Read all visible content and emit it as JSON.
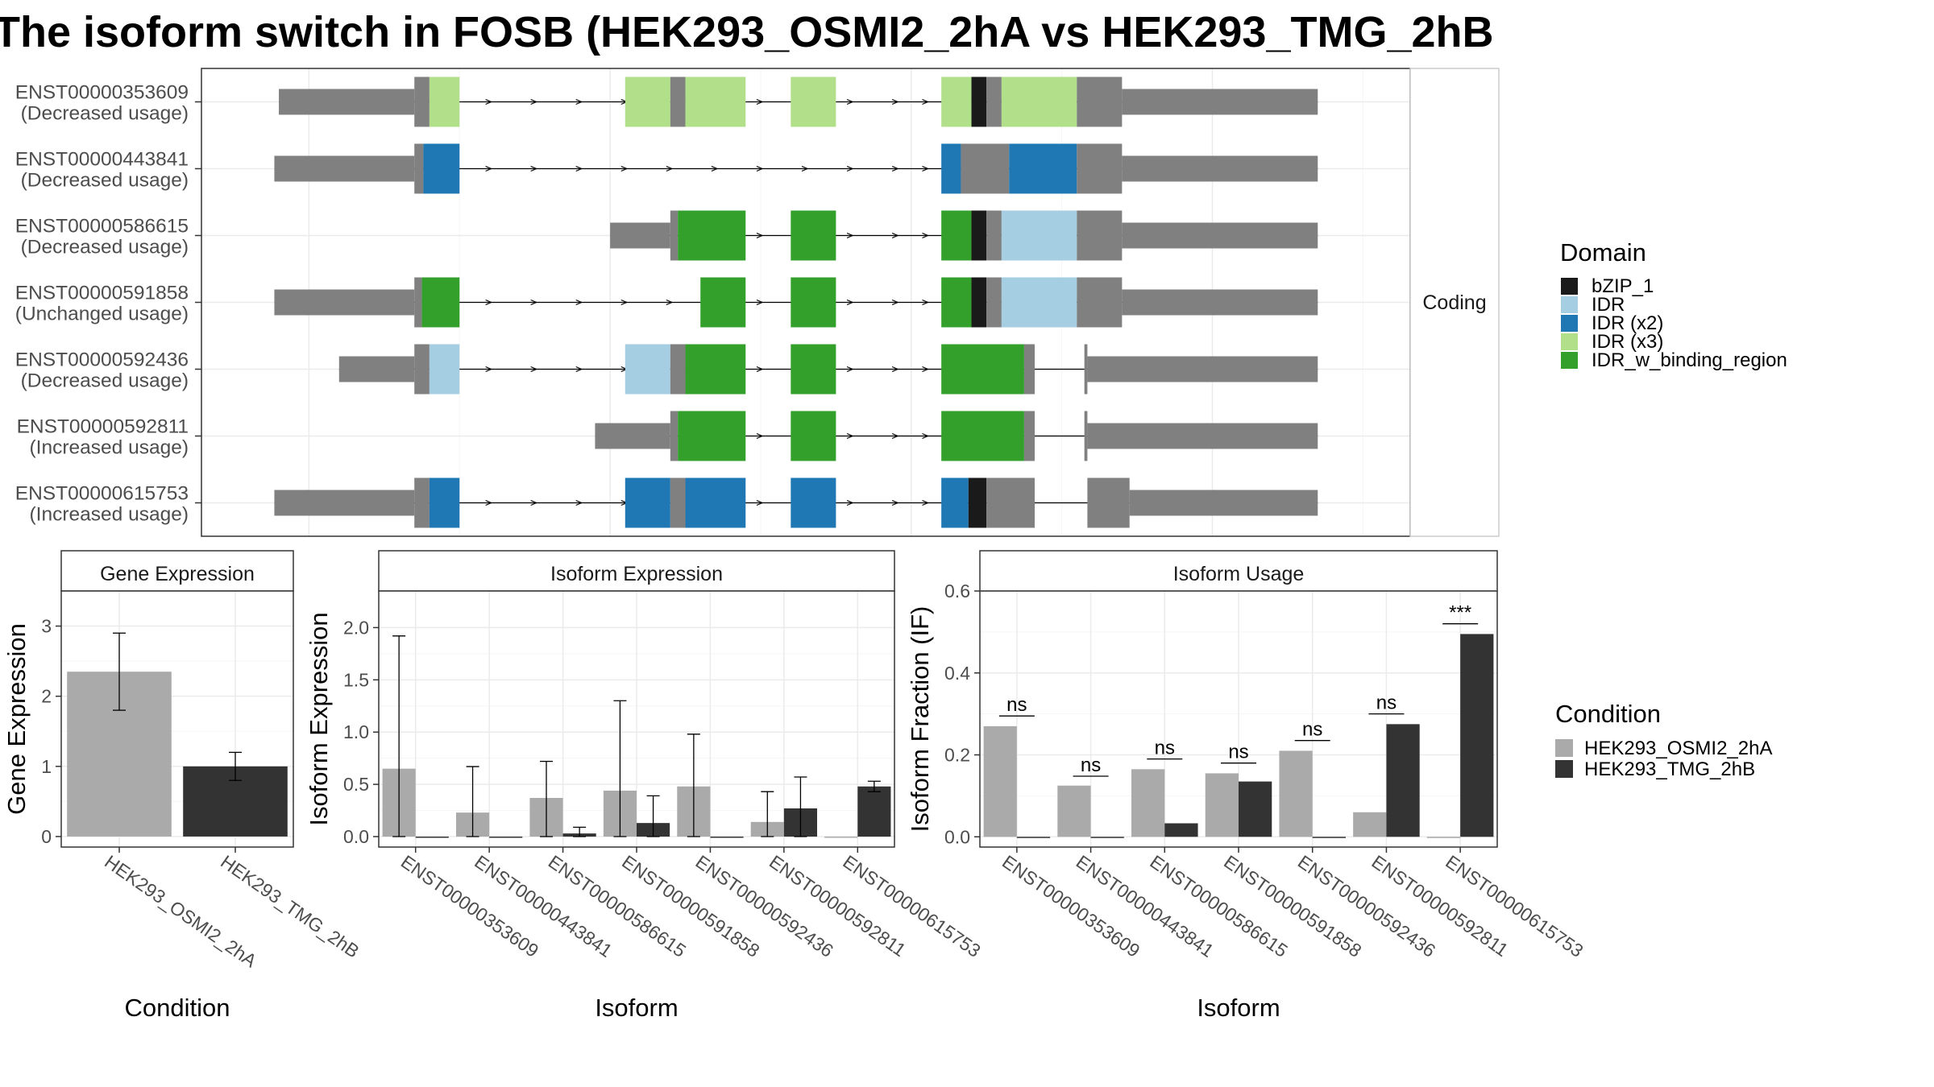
{
  "title": "The isoform switch in FOSB (HEK293_OSMI2_2hA vs HEK293_TMG_2hB",
  "colors": {
    "bZIP_1": "#1a1a1a",
    "IDR": "#a6cee3",
    "IDR (x2)": "#1f78b4",
    "IDR (x3)": "#b2df8a",
    "IDR_w_binding_region": "#33a02c",
    "utr": "#808080",
    "HEK293_OSMI2_2hA": "#aaaaaa",
    "HEK293_TMG_2hB": "#333333"
  },
  "transcript_panel": {
    "strip_label": "Coding",
    "transcripts": [
      {
        "id": "ENST00000353609",
        "usage": "(Decreased usage)",
        "start": 3,
        "end": 72,
        "exons": [
          [
            3,
            12,
            "utr"
          ],
          [
            12,
            13,
            "utr"
          ],
          [
            13,
            15,
            "IDR (x3)"
          ],
          [
            26,
            29,
            "IDR (x3)"
          ],
          [
            29,
            30,
            "utr"
          ],
          [
            30,
            34,
            "IDR (x3)"
          ],
          [
            37,
            40,
            "IDR (x3)"
          ],
          [
            47,
            49,
            "IDR (x3)"
          ],
          [
            49,
            50,
            "bZIP_1"
          ],
          [
            50,
            51,
            "utr"
          ],
          [
            51,
            56,
            "IDR (x3)"
          ],
          [
            56,
            59,
            "utr"
          ],
          [
            59,
            72,
            "utr"
          ]
        ],
        "thin": [
          [
            3,
            12
          ],
          [
            59,
            72
          ]
        ],
        "arrows": [
          17,
          20,
          23,
          26,
          35,
          39,
          41,
          44,
          46
        ]
      },
      {
        "id": "ENST00000443841",
        "usage": "(Decreased usage)",
        "start": 2.7,
        "end": 72,
        "exons": [
          [
            2.7,
            12,
            "utr"
          ],
          [
            12,
            12.6,
            "utr"
          ],
          [
            12.6,
            15,
            "IDR (x2)"
          ],
          [
            47,
            48.3,
            "IDR (x2)"
          ],
          [
            48.3,
            51.5,
            "utr"
          ],
          [
            51.5,
            56,
            "IDR (x2)"
          ],
          [
            56,
            59,
            "utr"
          ],
          [
            59,
            72,
            "utr"
          ]
        ],
        "thin": [
          [
            2.7,
            12
          ],
          [
            59,
            72
          ]
        ],
        "arrows": [
          17,
          20,
          23,
          26,
          29,
          32,
          35,
          38,
          41,
          44,
          46
        ]
      },
      {
        "id": "ENST00000586615",
        "usage": "(Decreased usage)",
        "start": 25,
        "end": 72,
        "exons": [
          [
            25,
            29,
            "utr"
          ],
          [
            29,
            29.5,
            "utr"
          ],
          [
            29.5,
            34,
            "IDR_w_binding_region"
          ],
          [
            37,
            40,
            "IDR_w_binding_region"
          ],
          [
            47,
            49,
            "IDR_w_binding_region"
          ],
          [
            49,
            50,
            "bZIP_1"
          ],
          [
            50,
            51,
            "utr"
          ],
          [
            51,
            56,
            "IDR"
          ],
          [
            56,
            59,
            "utr"
          ],
          [
            59,
            72,
            "utr"
          ]
        ],
        "thin": [
          [
            25,
            29
          ],
          [
            59,
            72
          ]
        ],
        "arrows": [
          35,
          39,
          41,
          44,
          46
        ]
      },
      {
        "id": "ENST00000591858",
        "usage": "(Unchanged usage)",
        "start": 2.7,
        "end": 72,
        "exons": [
          [
            2.7,
            12,
            "utr"
          ],
          [
            12,
            12.5,
            "utr"
          ],
          [
            12.5,
            15,
            "IDR_w_binding_region"
          ],
          [
            31,
            34,
            "IDR_w_binding_region"
          ],
          [
            37,
            40,
            "IDR_w_binding_region"
          ],
          [
            47,
            49,
            "IDR_w_binding_region"
          ],
          [
            49,
            50,
            "bZIP_1"
          ],
          [
            50,
            51,
            "utr"
          ],
          [
            51,
            56,
            "IDR"
          ],
          [
            56,
            59,
            "utr"
          ],
          [
            59,
            72,
            "utr"
          ]
        ],
        "thin": [
          [
            2.7,
            12
          ],
          [
            59,
            72
          ]
        ],
        "arrows": [
          17,
          20,
          23,
          26,
          29,
          35,
          39,
          41,
          44,
          46
        ]
      },
      {
        "id": "ENST00000592436",
        "usage": "(Decreased usage)",
        "start": 7,
        "end": 72,
        "exons": [
          [
            7,
            12,
            "utr"
          ],
          [
            12,
            13,
            "utr"
          ],
          [
            13,
            15,
            "IDR"
          ],
          [
            26,
            29,
            "IDR"
          ],
          [
            29,
            30,
            "utr"
          ],
          [
            30,
            34,
            "IDR_w_binding_region"
          ],
          [
            37,
            40,
            "IDR_w_binding_region"
          ],
          [
            47,
            52.5,
            "IDR_w_binding_region"
          ],
          [
            52.5,
            53.2,
            "utr"
          ],
          [
            56.5,
            56.7,
            "utr"
          ],
          [
            56.7,
            72,
            "utr"
          ]
        ],
        "thin": [
          [
            7,
            12
          ],
          [
            56.7,
            72
          ]
        ],
        "arrows": [
          17,
          20,
          23,
          26,
          35,
          39,
          41,
          44,
          46
        ]
      },
      {
        "id": "ENST00000592811",
        "usage": "(Increased usage)",
        "start": 24,
        "end": 72,
        "exons": [
          [
            24,
            29,
            "utr"
          ],
          [
            29,
            29.5,
            "utr"
          ],
          [
            29.5,
            34,
            "IDR_w_binding_region"
          ],
          [
            37,
            40,
            "IDR_w_binding_region"
          ],
          [
            47,
            52.5,
            "IDR_w_binding_region"
          ],
          [
            52.5,
            53.2,
            "utr"
          ],
          [
            56.5,
            56.7,
            "utr"
          ],
          [
            56.7,
            72,
            "utr"
          ]
        ],
        "thin": [
          [
            24,
            29
          ],
          [
            56.7,
            72
          ]
        ],
        "arrows": [
          35,
          39,
          41,
          44,
          46
        ]
      },
      {
        "id": "ENST00000615753",
        "usage": "(Increased usage)",
        "start": 2.7,
        "end": 72,
        "exons": [
          [
            2.7,
            12,
            "utr"
          ],
          [
            12,
            13,
            "utr"
          ],
          [
            13,
            15,
            "IDR (x2)"
          ],
          [
            26,
            29,
            "IDR (x2)"
          ],
          [
            29,
            30,
            "utr"
          ],
          [
            30,
            34,
            "IDR (x2)"
          ],
          [
            37,
            40,
            "IDR (x2)"
          ],
          [
            47,
            48.8,
            "IDR (x2)"
          ],
          [
            48.8,
            50,
            "bZIP_1"
          ],
          [
            50,
            53.2,
            "utr"
          ],
          [
            56.7,
            59.5,
            "utr"
          ],
          [
            59.5,
            72,
            "utr"
          ]
        ],
        "thin": [
          [
            2.7,
            12
          ],
          [
            59.5,
            72
          ]
        ],
        "arrows": [
          17,
          20,
          23,
          26,
          35,
          39,
          41,
          44,
          46
        ]
      }
    ]
  },
  "legend_domain": {
    "title": "Domain",
    "items": [
      "bZIP_1",
      "IDR",
      "IDR (x2)",
      "IDR (x3)",
      "IDR_w_binding_region"
    ]
  },
  "legend_condition": {
    "title": "Condition",
    "items": [
      "HEK293_OSMI2_2hA",
      "HEK293_TMG_2hB"
    ]
  },
  "chart_data": [
    {
      "type": "bar",
      "title": "Gene Expression",
      "xlabel": "Condition",
      "ylabel": "Gene Expression",
      "ylim": [
        -0.15,
        3.5
      ],
      "yticks": [
        0,
        1,
        2,
        3
      ],
      "categories": [
        "HEK293_OSMI2_2hA",
        "HEK293_TMG_2hB"
      ],
      "values": [
        2.35,
        1.0
      ],
      "err_low": [
        1.8,
        0.8
      ],
      "err_high": [
        2.9,
        1.2
      ]
    },
    {
      "type": "bar",
      "title": "Isoform Expression",
      "xlabel": "Isoform",
      "ylabel": "Isoform Expression",
      "ylim": [
        -0.1,
        2.35
      ],
      "yticks": [
        "0.0",
        "0.5",
        "1.0",
        "1.5",
        "2.0"
      ],
      "categories": [
        "ENST00000353609",
        "ENST00000443841",
        "ENST00000586615",
        "ENST00000591858",
        "ENST00000592436",
        "ENST00000592811",
        "ENST00000615753"
      ],
      "series": [
        {
          "name": "HEK293_OSMI2_2hA",
          "values": [
            0.65,
            0.23,
            0.37,
            0.44,
            0.48,
            0.14,
            0.0
          ],
          "err_low": [
            0.0,
            0.0,
            0.0,
            0.0,
            0.0,
            0.0,
            0.0
          ],
          "err_high": [
            1.92,
            0.67,
            0.72,
            1.3,
            0.98,
            0.43,
            0.0
          ]
        },
        {
          "name": "HEK293_TMG_2hB",
          "values": [
            0.0,
            0.0,
            0.03,
            0.13,
            0.0,
            0.27,
            0.48
          ],
          "err_low": [
            0.0,
            0.0,
            0.0,
            0.0,
            0.0,
            0.0,
            0.43
          ],
          "err_high": [
            0.0,
            0.0,
            0.09,
            0.39,
            0.0,
            0.57,
            0.53
          ]
        }
      ]
    },
    {
      "type": "bar",
      "title": "Isoform Usage",
      "xlabel": "Isoform",
      "ylabel": "Isoform Fraction (IF)",
      "ylim": [
        -0.025,
        0.6
      ],
      "yticks": [
        "0.0",
        "0.2",
        "0.4",
        "0.6"
      ],
      "categories": [
        "ENST00000353609",
        "ENST00000443841",
        "ENST00000586615",
        "ENST00000591858",
        "ENST00000592436",
        "ENST00000592811",
        "ENST00000615753"
      ],
      "series": [
        {
          "name": "HEK293_OSMI2_2hA",
          "values": [
            0.27,
            0.125,
            0.165,
            0.155,
            0.21,
            0.06,
            0.0
          ]
        },
        {
          "name": "HEK293_TMG_2hB",
          "values": [
            0.0,
            0.0,
            0.033,
            0.135,
            0.0,
            0.275,
            0.495
          ]
        }
      ],
      "significance": [
        {
          "label": "ns",
          "y": 0.295
        },
        {
          "label": "ns",
          "y": 0.148
        },
        {
          "label": "ns",
          "y": 0.19
        },
        {
          "label": "ns",
          "y": 0.18
        },
        {
          "label": "ns",
          "y": 0.235
        },
        {
          "label": "ns",
          "y": 0.3
        },
        {
          "label": "***",
          "y": 0.52
        }
      ]
    }
  ]
}
